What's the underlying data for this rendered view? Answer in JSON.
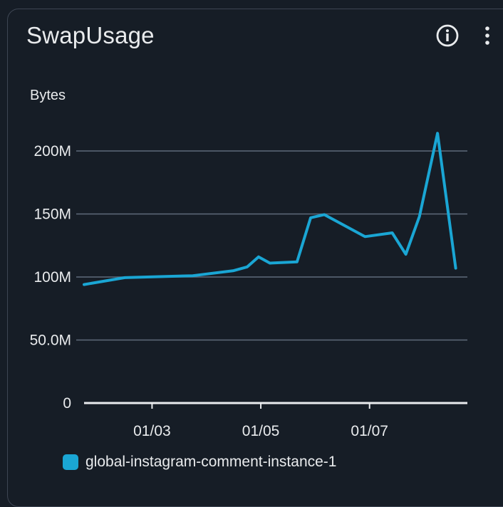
{
  "widget": {
    "title": "SwapUsage",
    "info_icon": "info-circle-icon",
    "menu_icon": "vertical-ellipsis-icon"
  },
  "colors": {
    "background": "#161d26",
    "series": "#1aa6d4",
    "grid": "#5f6b7a",
    "text": "#e9ebed"
  },
  "chart_data": {
    "type": "line",
    "ylabel": "Bytes",
    "ylim": [
      0,
      235000000
    ],
    "y_ticks": [
      {
        "value": 0,
        "label": "0"
      },
      {
        "value": 50000000,
        "label": "50.0M"
      },
      {
        "value": 100000000,
        "label": "100M"
      },
      {
        "value": 150000000,
        "label": "150M"
      },
      {
        "value": 200000000,
        "label": "200M"
      }
    ],
    "xlim": [
      "2024-01-01T18:00",
      "2024-01-08T22:00"
    ],
    "x_ticks": [
      {
        "value": "2024-01-03T00:00",
        "label": "01/03"
      },
      {
        "value": "2024-01-05T00:00",
        "label": "01/05"
      },
      {
        "value": "2024-01-07T00:00",
        "label": "01/07"
      }
    ],
    "grid": "horizontal",
    "legend": "bottom-left",
    "series": [
      {
        "name": "global-instagram-comment-instance-1",
        "color": "#1aa6d4",
        "points": [
          {
            "x": "2024-01-01T18:00",
            "y": 94000000
          },
          {
            "x": "2024-01-02T12:00",
            "y": 99500000
          },
          {
            "x": "2024-01-03T18:00",
            "y": 101000000
          },
          {
            "x": "2024-01-04T12:00",
            "y": 105000000
          },
          {
            "x": "2024-01-04T18:00",
            "y": 108000000
          },
          {
            "x": "2024-01-04T23:00",
            "y": 116000000
          },
          {
            "x": "2024-01-05T04:00",
            "y": 111000000
          },
          {
            "x": "2024-01-05T16:00",
            "y": 112000000
          },
          {
            "x": "2024-01-05T22:00",
            "y": 147000000
          },
          {
            "x": "2024-01-06T04:00",
            "y": 149500000
          },
          {
            "x": "2024-01-06T22:00",
            "y": 132000000
          },
          {
            "x": "2024-01-07T10:00",
            "y": 135000000
          },
          {
            "x": "2024-01-07T16:00",
            "y": 118000000
          },
          {
            "x": "2024-01-07T22:00",
            "y": 148000000
          },
          {
            "x": "2024-01-08T06:00",
            "y": 214000000
          },
          {
            "x": "2024-01-08T14:00",
            "y": 107000000
          }
        ]
      }
    ]
  }
}
